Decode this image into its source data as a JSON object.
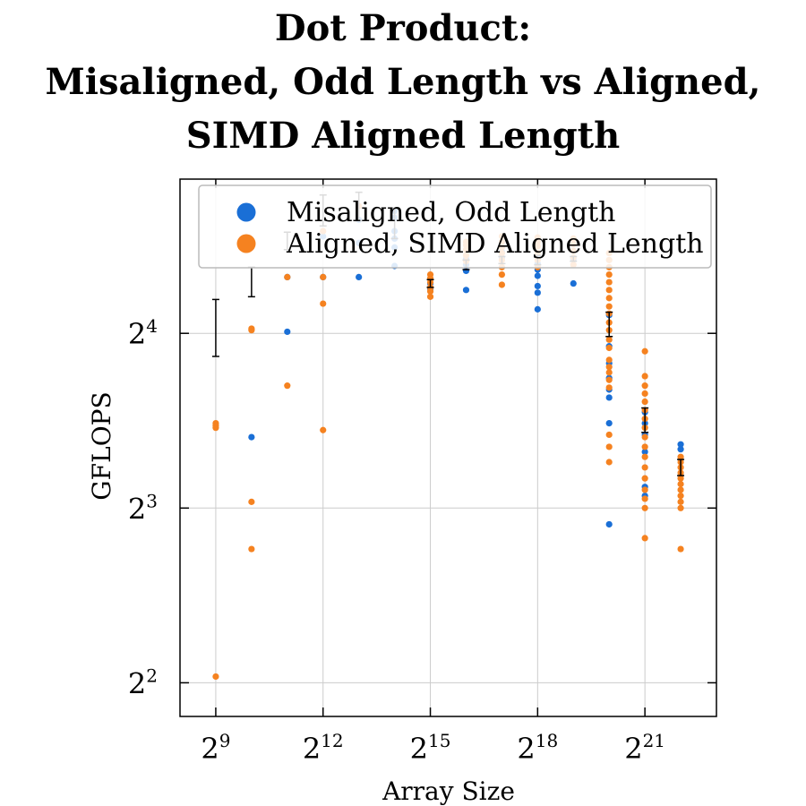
{
  "chart_data": {
    "type": "scatter",
    "title": [
      "Dot Product:",
      "Misaligned, Odd Length vs Aligned,",
      "SIMD Aligned Length"
    ],
    "xlabel": "Array Size",
    "ylabel": "GFLOPS",
    "x_scale": "log2",
    "y_scale": "log2",
    "xlim": [
      256,
      8388608
    ],
    "ylim": [
      3.5,
      29.5
    ],
    "x_ticks": [
      {
        "base": "2",
        "exp": "9",
        "value": 512
      },
      {
        "base": "2",
        "exp": "12",
        "value": 4096
      },
      {
        "base": "2",
        "exp": "15",
        "value": 32768
      },
      {
        "base": "2",
        "exp": "18",
        "value": 262144
      },
      {
        "base": "2",
        "exp": "21",
        "value": 2097152
      }
    ],
    "y_ticks": [
      {
        "base": "2",
        "exp": "2",
        "value": 4
      },
      {
        "base": "2",
        "exp": "3",
        "value": 8
      },
      {
        "base": "2",
        "exp": "4",
        "value": 16
      }
    ],
    "grid": true,
    "legend_position": "top-right",
    "series": [
      {
        "name": "Misaligned, Odd Length",
        "color": "#1a6fd6",
        "points": [
          [
            1024,
            10.6
          ],
          [
            2048,
            16.1
          ],
          [
            2048,
            20.0
          ],
          [
            4096,
            20.0
          ],
          [
            4096,
            23.5
          ],
          [
            8192,
            20.0
          ],
          [
            8192,
            22.9
          ],
          [
            8192,
            25.1
          ],
          [
            16384,
            20.9
          ],
          [
            16384,
            22.5
          ],
          [
            16384,
            23.3
          ],
          [
            16384,
            24.0
          ],
          [
            16384,
            25.3
          ],
          [
            16384,
            26.0
          ],
          [
            32768,
            19.1
          ],
          [
            32768,
            19.5
          ],
          [
            65536,
            19.0
          ],
          [
            65536,
            20.5
          ],
          [
            65536,
            21.0
          ],
          [
            65536,
            21.5
          ],
          [
            131072,
            21.6
          ],
          [
            131072,
            22.1
          ],
          [
            262144,
            17.6
          ],
          [
            262144,
            18.8
          ],
          [
            262144,
            19.3
          ],
          [
            262144,
            20.1
          ],
          [
            262144,
            20.6
          ],
          [
            262144,
            21.1
          ],
          [
            262144,
            21.6
          ],
          [
            524288,
            19.5
          ],
          [
            524288,
            21.5
          ],
          [
            1048576,
            7.5
          ],
          [
            1048576,
            11.2
          ],
          [
            1048576,
            12.4
          ],
          [
            1048576,
            12.8
          ],
          [
            1048576,
            13.4
          ],
          [
            1048576,
            14.2
          ],
          [
            1048576,
            15.2
          ],
          [
            1048576,
            17.2
          ],
          [
            2097152,
            8.4
          ],
          [
            2097152,
            8.7
          ],
          [
            2097152,
            10.0
          ],
          [
            2097152,
            10.7
          ],
          [
            2097152,
            11.2
          ],
          [
            2097152,
            11.7
          ],
          [
            4194304,
            10.1
          ],
          [
            4194304,
            10.3
          ]
        ]
      },
      {
        "name": "Aligned, SIMD Aligned Length",
        "color": "#f58220",
        "points": [
          [
            512,
            4.1
          ],
          [
            512,
            11.0
          ],
          [
            512,
            11.1
          ],
          [
            512,
            11.2
          ],
          [
            1024,
            6.8
          ],
          [
            1024,
            8.2
          ],
          [
            1024,
            16.2
          ],
          [
            1024,
            16.3
          ],
          [
            2048,
            13.0
          ],
          [
            2048,
            20.0
          ],
          [
            4096,
            10.9
          ],
          [
            4096,
            18.0
          ],
          [
            4096,
            20.0
          ],
          [
            4096,
            24.0
          ],
          [
            8192,
            26.5
          ],
          [
            32768,
            18.5
          ],
          [
            32768,
            18.9
          ],
          [
            32768,
            19.2
          ],
          [
            32768,
            19.6
          ],
          [
            32768,
            19.9
          ],
          [
            32768,
            20.2
          ],
          [
            65536,
            21.3
          ],
          [
            65536,
            21.8
          ],
          [
            65536,
            22.3
          ],
          [
            65536,
            22.7
          ],
          [
            65536,
            23.0
          ],
          [
            131072,
            19.4
          ],
          [
            131072,
            20.2
          ],
          [
            131072,
            20.8
          ],
          [
            131072,
            21.4
          ],
          [
            131072,
            22.0
          ],
          [
            131072,
            22.5
          ],
          [
            131072,
            23.0
          ],
          [
            131072,
            23.5
          ],
          [
            262144,
            20.8
          ],
          [
            262144,
            21.4
          ],
          [
            262144,
            22.0
          ],
          [
            262144,
            22.6
          ],
          [
            262144,
            23.0
          ],
          [
            262144,
            23.4
          ],
          [
            524288,
            21.0
          ],
          [
            524288,
            21.6
          ],
          [
            524288,
            22.2
          ],
          [
            524288,
            22.8
          ],
          [
            524288,
            23.3
          ],
          [
            1048576,
            9.6
          ],
          [
            1048576,
            10.2
          ],
          [
            1048576,
            10.7
          ],
          [
            1048576,
            12.9
          ],
          [
            1048576,
            13.3
          ],
          [
            1048576,
            13.7
          ],
          [
            1048576,
            14.0
          ],
          [
            1048576,
            14.4
          ],
          [
            1048576,
            15.1
          ],
          [
            1048576,
            15.6
          ],
          [
            1048576,
            16.2
          ],
          [
            1048576,
            16.7
          ],
          [
            1048576,
            17.3
          ],
          [
            1048576,
            17.8
          ],
          [
            1048576,
            18.4
          ],
          [
            1048576,
            19.0
          ],
          [
            1048576,
            19.6
          ],
          [
            1048576,
            20.2
          ],
          [
            1048576,
            20.8
          ],
          [
            1048576,
            21.4
          ],
          [
            1048576,
            22.0
          ],
          [
            2097152,
            7.1
          ],
          [
            2097152,
            8.0
          ],
          [
            2097152,
            8.3
          ],
          [
            2097152,
            8.6
          ],
          [
            2097152,
            9.0
          ],
          [
            2097152,
            9.4
          ],
          [
            2097152,
            9.8
          ],
          [
            2097152,
            10.2
          ],
          [
            2097152,
            10.6
          ],
          [
            2097152,
            11.0
          ],
          [
            2097152,
            11.4
          ],
          [
            2097152,
            11.8
          ],
          [
            2097152,
            12.2
          ],
          [
            2097152,
            12.6
          ],
          [
            2097152,
            13.0
          ],
          [
            2097152,
            13.5
          ],
          [
            2097152,
            14.9
          ],
          [
            4194304,
            6.8
          ],
          [
            4194304,
            8.0
          ],
          [
            4194304,
            8.2
          ],
          [
            4194304,
            8.4
          ],
          [
            4194304,
            8.6
          ],
          [
            4194304,
            8.8
          ],
          [
            4194304,
            9.0
          ],
          [
            4194304,
            9.2
          ],
          [
            4194304,
            9.4
          ],
          [
            4194304,
            9.6
          ],
          [
            4194304,
            9.8
          ]
        ]
      }
    ],
    "error_bars": {
      "color": "#000000",
      "items": [
        {
          "x": 512,
          "y": 16.4,
          "low": 14.6,
          "high": 18.3
        },
        {
          "x": 1024,
          "y": 19.6,
          "low": 18.5,
          "high": 20.8
        },
        {
          "x": 2048,
          "y": 23.1,
          "low": 22.3,
          "high": 23.9
        },
        {
          "x": 4096,
          "y": 26.0,
          "low": 24.5,
          "high": 27.7
        },
        {
          "x": 8192,
          "y": 26.5,
          "low": 25.0,
          "high": 28.0
        },
        {
          "x": 16384,
          "y": 24.5,
          "low": 23.3,
          "high": 26.3
        },
        {
          "x": 32768,
          "y": 19.5,
          "low": 19.2,
          "high": 19.8
        },
        {
          "x": 65536,
          "y": 21.0,
          "low": 20.6,
          "high": 21.4
        },
        {
          "x": 131072,
          "y": 21.4,
          "low": 21.1,
          "high": 21.7
        },
        {
          "x": 262144,
          "y": 21.4,
          "low": 21.0,
          "high": 21.8
        },
        {
          "x": 524288,
          "y": 21.5,
          "low": 21.3,
          "high": 21.7
        },
        {
          "x": 1048576,
          "y": 16.6,
          "low": 15.8,
          "high": 17.4
        },
        {
          "x": 2097152,
          "y": 11.3,
          "low": 10.8,
          "high": 11.9
        },
        {
          "x": 4194304,
          "y": 9.4,
          "low": 9.1,
          "high": 9.7
        }
      ]
    }
  }
}
